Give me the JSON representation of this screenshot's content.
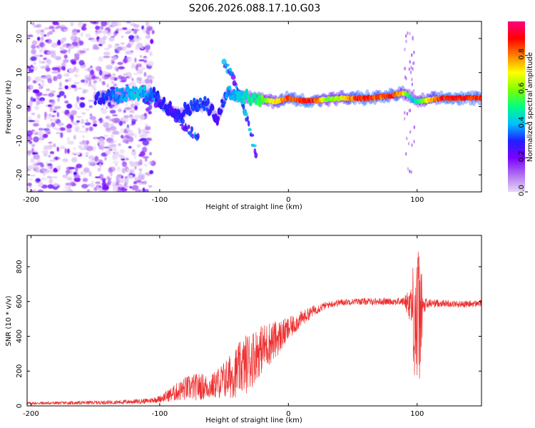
{
  "figure_title": "S206.2026.088.17.10.G03",
  "chart_data": [
    {
      "type": "heatmap",
      "title": "S206.2026.088.17.10.G03",
      "xlabel": "Height of straight line (km)",
      "ylabel": "Frequency (Hz)",
      "xlim": [
        -203,
        150
      ],
      "ylim": [
        -25,
        25
      ],
      "x_ticks": [
        -200,
        -100,
        0,
        100
      ],
      "y_ticks": [
        -20,
        -10,
        0,
        10,
        20
      ],
      "colorbar": {
        "label": "Normalized spectral amplitude",
        "range": [
          0,
          1
        ],
        "ticks": [
          "0.0",
          "0.2",
          "0.4",
          "0.6",
          "0.8"
        ],
        "colors": [
          "#e8d8f6",
          "#b070f0",
          "#7a00ff",
          "#2020ff",
          "#00c0ff",
          "#00ff80",
          "#80ff00",
          "#ffff00",
          "#ff8000",
          "#ff0000",
          "#ff0080"
        ]
      },
      "ridge": {
        "description": "dominant frequency track vs height",
        "x": [
          -150,
          -130,
          -115,
          -105,
          -95,
          -85,
          -75,
          -65,
          -55,
          -48,
          -40,
          -30,
          -20,
          -10,
          0,
          10,
          20,
          30,
          40,
          50,
          60,
          70,
          80,
          88,
          93,
          96,
          100,
          110,
          120,
          130,
          140,
          150
        ],
        "freq": [
          2.5,
          3.5,
          4,
          3.5,
          0,
          -2,
          0,
          1,
          -3,
          4,
          3.5,
          2.5,
          2,
          1.5,
          2.5,
          1.8,
          1.8,
          2.2,
          2.5,
          2.5,
          2.5,
          2.8,
          3.2,
          4,
          3.5,
          2,
          1.5,
          2,
          2.5,
          2.5,
          2.5,
          2.5
        ],
        "amplitude": [
          0.3,
          0.4,
          0.45,
          0.35,
          0.3,
          0.3,
          0.35,
          0.35,
          0.25,
          0.4,
          0.45,
          0.5,
          0.6,
          0.75,
          0.9,
          0.95,
          0.97,
          0.6,
          0.7,
          0.9,
          0.97,
          0.9,
          0.95,
          0.8,
          0.6,
          0.4,
          0.5,
          0.8,
          0.95,
          0.97,
          0.95,
          0.9
        ]
      },
      "branches": [
        {
          "x": [
            -115,
            -100,
            -90,
            -80,
            -70
          ],
          "freq": [
            3,
            1,
            -2,
            -6,
            -9
          ]
        },
        {
          "x": [
            -50,
            -45,
            -40,
            -35,
            -30,
            -25
          ],
          "freq": [
            13,
            10,
            5,
            0,
            -6,
            -15
          ]
        }
      ],
      "noise_region": {
        "x": [
          -203,
          -105
        ],
        "freq": [
          -25,
          25
        ]
      }
    },
    {
      "type": "line",
      "xlabel": "Height of straight line (km)",
      "ylabel": "SNR (10 * v/v)",
      "xlim": [
        -203,
        150
      ],
      "ylim": [
        0,
        980
      ],
      "x_ticks": [
        -200,
        -100,
        0,
        100
      ],
      "y_ticks": [
        0,
        200,
        400,
        600,
        800
      ],
      "series_color": "#ee3030",
      "envelope": {
        "x": [
          -203,
          -160,
          -130,
          -110,
          -100,
          -90,
          -80,
          -70,
          -60,
          -50,
          -45,
          -40,
          -30,
          -25,
          -20,
          -15,
          -10,
          -5,
          0,
          5,
          10,
          20,
          30,
          40,
          50,
          60,
          70,
          80,
          90,
          95,
          98,
          100,
          102,
          105,
          110,
          120,
          130,
          140,
          150
        ],
        "mean": [
          15,
          18,
          22,
          28,
          40,
          70,
          100,
          110,
          110,
          150,
          170,
          200,
          260,
          300,
          330,
          360,
          380,
          410,
          440,
          470,
          500,
          550,
          580,
          595,
          600,
          600,
          600,
          600,
          600,
          590,
          520,
          480,
          520,
          570,
          590,
          590,
          585,
          585,
          590
        ],
        "noise": [
          8,
          10,
          12,
          15,
          20,
          45,
          70,
          80,
          70,
          110,
          130,
          150,
          180,
          150,
          140,
          130,
          110,
          90,
          70,
          55,
          45,
          30,
          20,
          20,
          18,
          20,
          20,
          20,
          25,
          120,
          380,
          480,
          380,
          60,
          25,
          20,
          20,
          20,
          20
        ]
      }
    }
  ]
}
